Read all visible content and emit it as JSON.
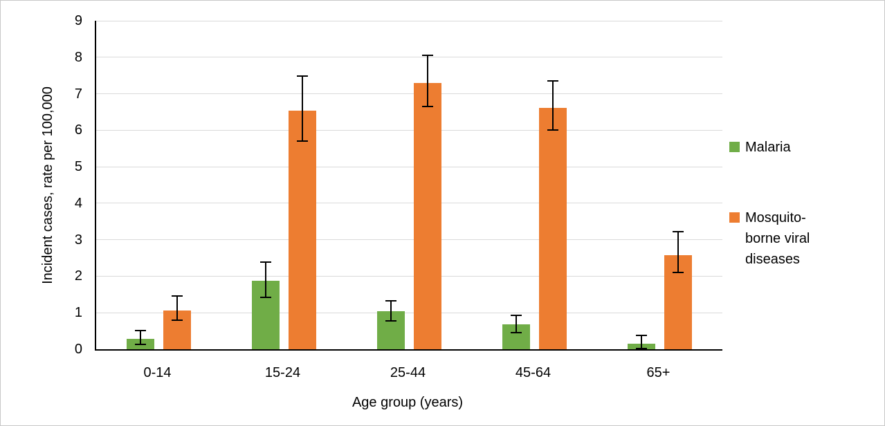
{
  "chart_data": {
    "type": "bar",
    "title": "",
    "xlabel": "Age group (years)",
    "ylabel": "Incident cases, rate per 100,000",
    "categories": [
      "0-14",
      "15-24",
      "25-44",
      "45-64",
      "65+"
    ],
    "series": [
      {
        "name": "Malaria",
        "color": "#70AD47",
        "values": [
          0.28,
          1.88,
          1.05,
          0.68,
          0.15
        ],
        "error_low": [
          0.13,
          1.43,
          0.78,
          0.46,
          0.02
        ],
        "error_high": [
          0.52,
          2.38,
          1.33,
          0.92,
          0.38
        ]
      },
      {
        "name": "Mosquito-borne viral diseases",
        "color": "#ED7D31",
        "values": [
          1.06,
          6.53,
          7.3,
          6.62,
          2.58
        ],
        "error_low": [
          0.79,
          5.7,
          6.65,
          6.0,
          2.1
        ],
        "error_high": [
          1.45,
          7.48,
          8.05,
          7.35,
          3.22
        ]
      }
    ],
    "ylim": [
      0,
      9
    ],
    "yticks": [
      0,
      1,
      2,
      3,
      4,
      5,
      6,
      7,
      8,
      9
    ],
    "grid": true,
    "legend_position": "right",
    "error_bars": true
  },
  "colors": {
    "grid": "#D9D9D9",
    "axis": "#000000",
    "text": "#000000",
    "error_bar": "#000000",
    "figure_border": "#C8C8C8"
  }
}
